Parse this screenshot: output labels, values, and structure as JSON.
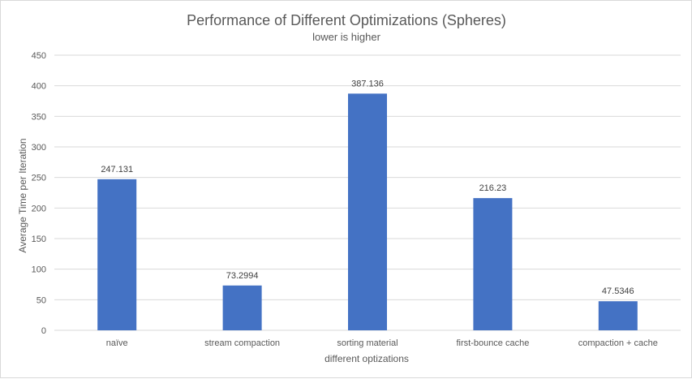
{
  "chart_data": {
    "type": "bar",
    "title": "Performance of Different Optimizations (Spheres)",
    "subtitle": "lower is higher",
    "xlabel": "different optizations",
    "ylabel": "Average Time per Iteration",
    "categories": [
      "naïve",
      "stream compaction",
      "sorting material",
      "first-bounce cache",
      "compaction + cache"
    ],
    "values": [
      247.131,
      73.2994,
      387.136,
      216.23,
      47.5346
    ],
    "data_labels": [
      "247.131",
      "73.2994",
      "387.136",
      "216.23",
      "47.5346"
    ],
    "yticks": [
      "0",
      "50",
      "100",
      "150",
      "200",
      "250",
      "300",
      "350",
      "400",
      "450"
    ],
    "ylim": [
      0,
      450
    ],
    "grid": true,
    "legend": "none",
    "bar_color": "#4472C4",
    "grid_color": "#d9d9d9"
  }
}
